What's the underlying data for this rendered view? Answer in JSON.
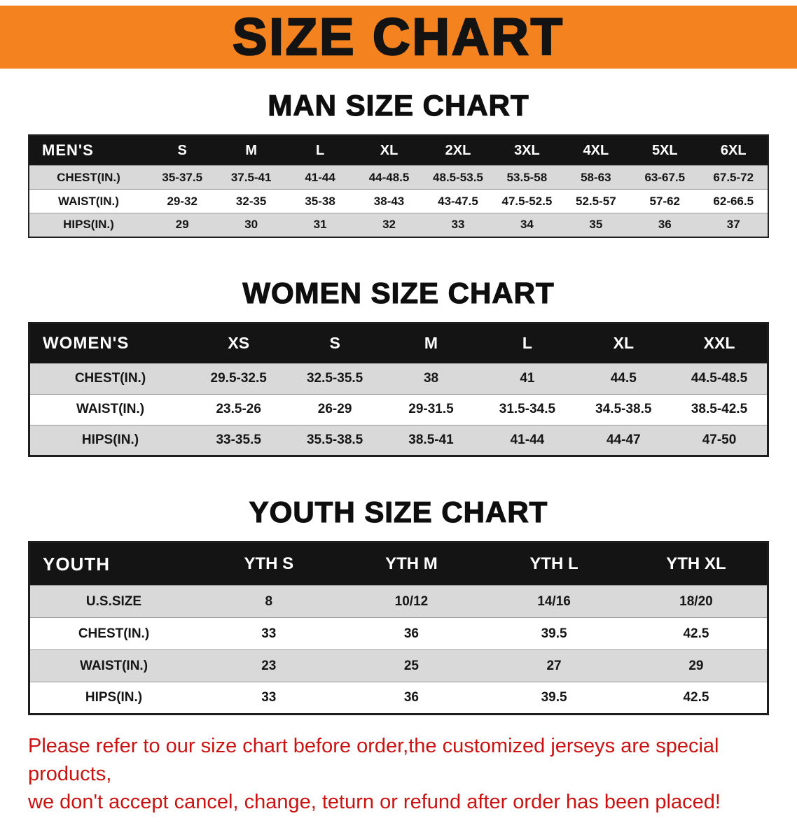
{
  "banner": {
    "title": "SIZE CHART",
    "bg_color": "#F4821F",
    "text_color": "#131313"
  },
  "sections": [
    {
      "heading": "MAN SIZE CHART",
      "table": {
        "header": [
          "MEN'S",
          "S",
          "M",
          "L",
          "XL",
          "2XL",
          "3XL",
          "4XL",
          "5XL",
          "6XL"
        ],
        "rows": [
          [
            "CHEST(IN.)",
            "35-37.5",
            "37.5-41",
            "41-44",
            "44-48.5",
            "48.5-53.5",
            "53.5-58",
            "58-63",
            "63-67.5",
            "67.5-72"
          ],
          [
            "WAIST(IN.)",
            "29-32",
            "32-35",
            "35-38",
            "38-43",
            "43-47.5",
            "47.5-52.5",
            "52.5-57",
            "57-62",
            "62-66.5"
          ],
          [
            "HIPS(IN.)",
            "29",
            "30",
            "31",
            "32",
            "33",
            "34",
            "35",
            "36",
            "37"
          ]
        ]
      }
    },
    {
      "heading": "WOMEN SIZE CHART",
      "table": {
        "header": [
          "WOMEN'S",
          "XS",
          "S",
          "M",
          "L",
          "XL",
          "XXL"
        ],
        "rows": [
          [
            "CHEST(IN.)",
            "29.5-32.5",
            "32.5-35.5",
            "38",
            "41",
            "44.5",
            "44.5-48.5"
          ],
          [
            "WAIST(IN.)",
            "23.5-26",
            "26-29",
            "29-31.5",
            "31.5-34.5",
            "34.5-38.5",
            "38.5-42.5"
          ],
          [
            "HIPS(IN.)",
            "33-35.5",
            "35.5-38.5",
            "38.5-41",
            "41-44",
            "44-47",
            "47-50"
          ]
        ]
      }
    },
    {
      "heading": "YOUTH SIZE CHART",
      "table": {
        "header": [
          "YOUTH",
          "YTH S",
          "YTH M",
          "YTH L",
          "YTH XL"
        ],
        "rows": [
          [
            "U.S.SIZE",
            "8",
            "10/12",
            "14/16",
            "18/20"
          ],
          [
            "CHEST(IN.)",
            "33",
            "36",
            "39.5",
            "42.5"
          ],
          [
            "WAIST(IN.)",
            "23",
            "25",
            "27",
            "29"
          ],
          [
            "HIPS(IN.)",
            "33",
            "36",
            "39.5",
            "42.5"
          ]
        ]
      }
    }
  ],
  "footer": {
    "line1": "Please refer to our size chart before order,the customized jerseys are special products,",
    "line2": "we don't accept cancel, change, teturn or refund after order has been placed!",
    "text_color": "#cc1111"
  }
}
